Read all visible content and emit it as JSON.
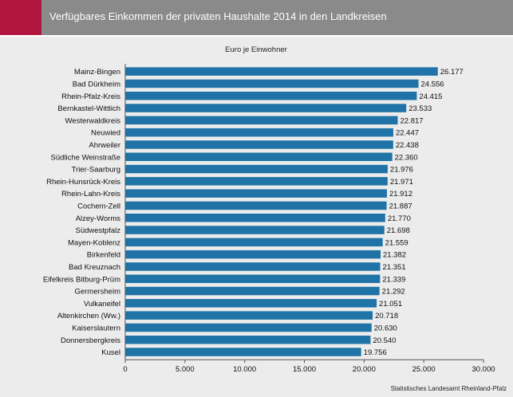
{
  "header": {
    "title": "Verfügbares Einkommen der privaten Haushalte 2014 in den Landkreisen"
  },
  "source": "Statistisches Landesamt Rheinland-Pfalz",
  "colors": {
    "header_bg": "#8a8a8a",
    "accent": "#b0163e",
    "bar": "#1f73a6",
    "background": "#ececec"
  },
  "chart_data": {
    "type": "bar",
    "orientation": "horizontal",
    "subtitle": "Euro je Einwohner",
    "categories": [
      "Mainz-Bingen",
      "Bad Dürkheim",
      "Rhein-Pfalz-Kreis",
      "Bernkastel-Wittlich",
      "Westerwaldkreis",
      "Neuwied",
      "Ahrweiler",
      "Südliche Weinstraße",
      "Trier-Saarburg",
      "Rhein-Hunsrück-Kreis",
      "Rhein-Lahn-Kreis",
      "Cochem-Zell",
      "Alzey-Worms",
      "Südwestpfalz",
      "Mayen-Koblenz",
      "Birkenfeld",
      "Bad Kreuznach",
      "Eifelkreis Bitburg-Prüm",
      "Germersheim",
      "Vulkaneifel",
      "Altenkirchen (Ww.)",
      "Kaiserslautern",
      "Donnersbergkreis",
      "Kusel"
    ],
    "values": [
      26177,
      24556,
      24415,
      23533,
      22817,
      22447,
      22438,
      22360,
      21976,
      21971,
      21912,
      21887,
      21770,
      21698,
      21559,
      21382,
      21351,
      21339,
      21292,
      21051,
      20718,
      20630,
      20540,
      19756
    ],
    "value_labels": [
      "26.177",
      "24.556",
      "24.415",
      "23.533",
      "22.817",
      "22.447",
      "22.438",
      "22.360",
      "21.976",
      "21.971",
      "21.912",
      "21.887",
      "21.770",
      "21.698",
      "21.559",
      "21.382",
      "21.351",
      "21.339",
      "21.292",
      "21.051",
      "20.718",
      "20.630",
      "20.540",
      "19.756"
    ],
    "xlim": [
      0,
      30000
    ],
    "xticks": [
      0,
      5000,
      10000,
      15000,
      20000,
      25000,
      30000
    ],
    "xtick_labels": [
      "0",
      "5.000",
      "10.000",
      "15.000",
      "20.000",
      "25.000",
      "30.000"
    ],
    "xlabel": "",
    "ylabel": "",
    "grid": false
  }
}
